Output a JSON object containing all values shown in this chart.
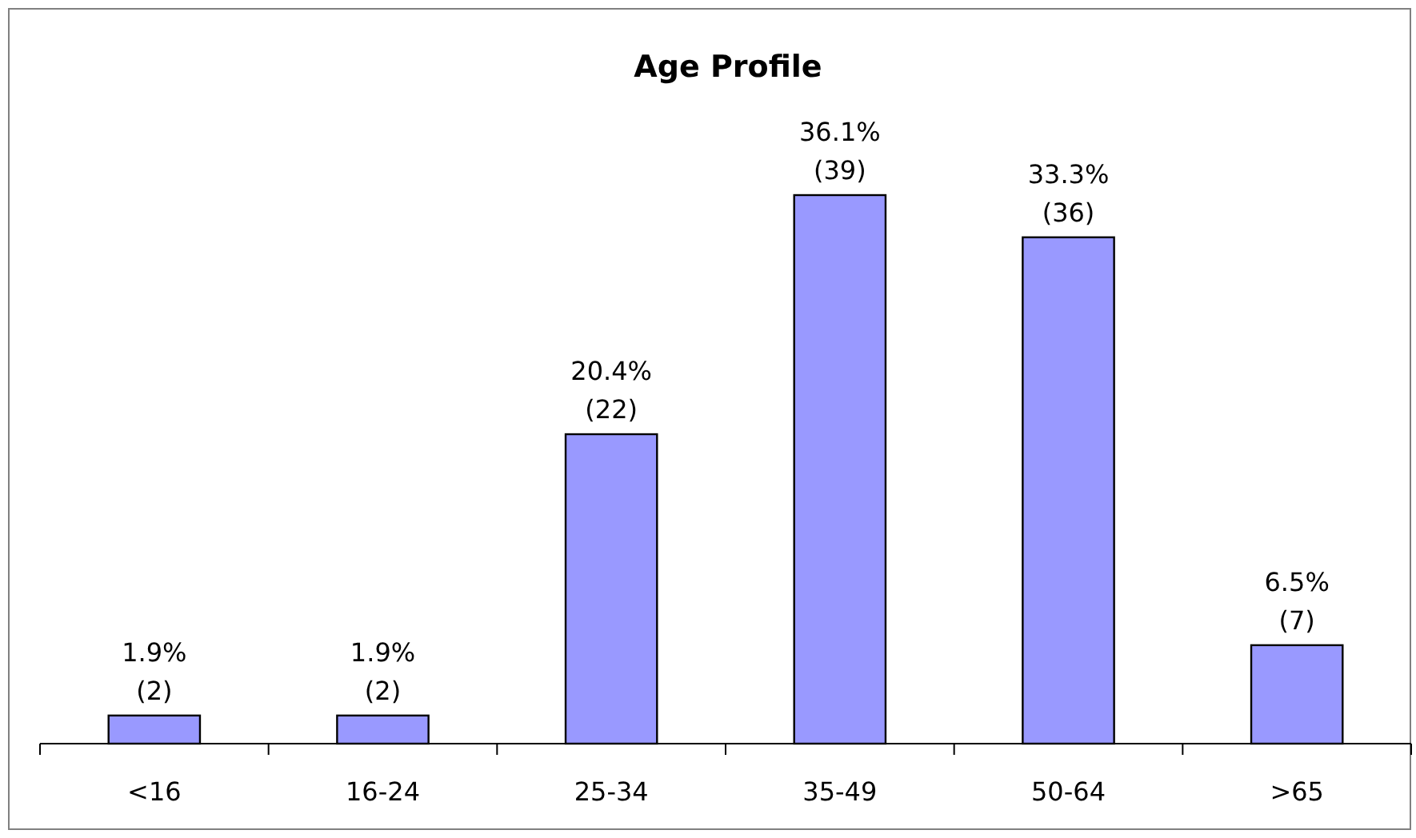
{
  "chart_data": {
    "type": "bar",
    "title": "Age Profile",
    "categories": [
      "<16",
      "16-24",
      "25-34",
      "35-49",
      "50-64",
      ">65"
    ],
    "values": [
      2,
      2,
      22,
      39,
      36,
      7
    ],
    "value_labels": [
      "1.9%\n(2)",
      "1.9%\n(2)",
      "20.4%\n(22)",
      "36.1%\n(39)",
      "33.3%\n(36)",
      "6.5%\n(7)"
    ],
    "color": "#9999ff"
  }
}
